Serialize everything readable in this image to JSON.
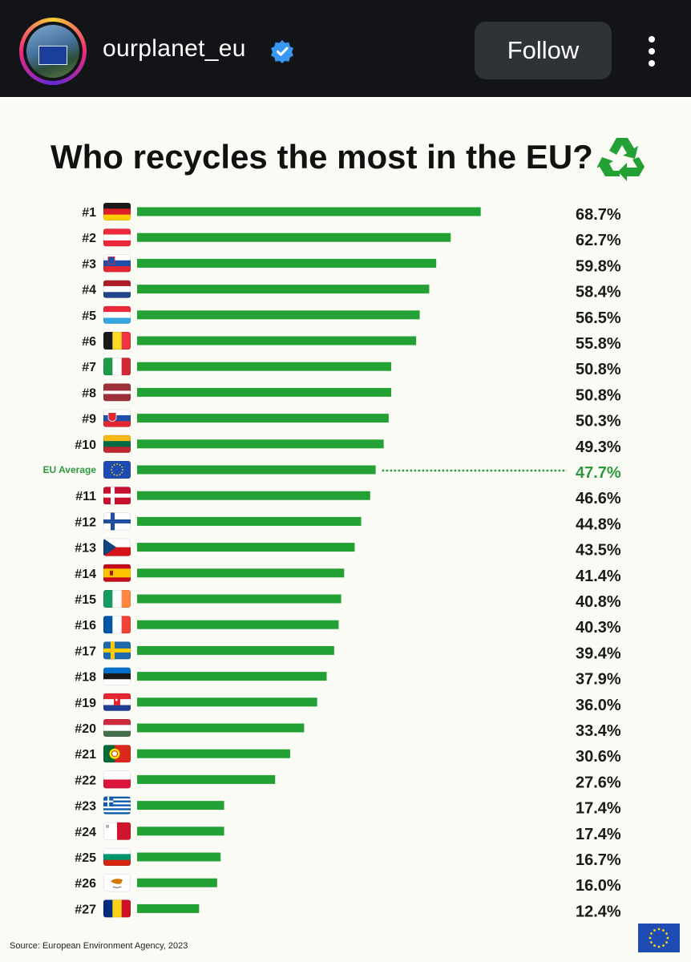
{
  "header": {
    "username": "ourplanet_eu",
    "follow_label": "Follow",
    "icons": [
      "avatar",
      "verified-badge-icon",
      "more-options-icon"
    ]
  },
  "colors": {
    "bar": "#23a134",
    "eu_average": "#2e9a40",
    "topbar": "#121418",
    "background": "#fbfbf6"
  },
  "chart_data": {
    "type": "bar",
    "orientation": "horizontal",
    "title": "Who recycles the most in the EU?",
    "source": "Source: European Environment Agency, 2023",
    "value_suffix": "%",
    "xlim": [
      0,
      80
    ],
    "rows": [
      {
        "rank": "#1",
        "flag": "de",
        "value": 68.7,
        "label": "68.7%"
      },
      {
        "rank": "#2",
        "flag": "at",
        "value": 62.7,
        "label": "62.7%"
      },
      {
        "rank": "#3",
        "flag": "si",
        "value": 59.8,
        "label": "59.8%"
      },
      {
        "rank": "#4",
        "flag": "nl",
        "value": 58.4,
        "label": "58.4%"
      },
      {
        "rank": "#5",
        "flag": "lu",
        "value": 56.5,
        "label": "56.5%"
      },
      {
        "rank": "#6",
        "flag": "be",
        "value": 55.8,
        "label": "55.8%"
      },
      {
        "rank": "#7",
        "flag": "it",
        "value": 50.8,
        "label": "50.8%"
      },
      {
        "rank": "#8",
        "flag": "lv",
        "value": 50.8,
        "label": "50.8%"
      },
      {
        "rank": "#9",
        "flag": "sk",
        "value": 50.3,
        "label": "50.3%"
      },
      {
        "rank": "#10",
        "flag": "lt",
        "value": 49.3,
        "label": "49.3%"
      },
      {
        "rank": "EU Average",
        "flag": "eu",
        "value": 47.7,
        "label": "47.7%",
        "average": true
      },
      {
        "rank": "#11",
        "flag": "dk",
        "value": 46.6,
        "label": "46.6%"
      },
      {
        "rank": "#12",
        "flag": "fi",
        "value": 44.8,
        "label": "44.8%"
      },
      {
        "rank": "#13",
        "flag": "cz",
        "value": 43.5,
        "label": "43.5%"
      },
      {
        "rank": "#14",
        "flag": "es",
        "value": 41.4,
        "label": "41.4%"
      },
      {
        "rank": "#15",
        "flag": "ie",
        "value": 40.8,
        "label": "40.8%"
      },
      {
        "rank": "#16",
        "flag": "fr",
        "value": 40.3,
        "label": "40.3%"
      },
      {
        "rank": "#17",
        "flag": "se",
        "value": 39.4,
        "label": "39.4%"
      },
      {
        "rank": "#18",
        "flag": "ee",
        "value": 37.9,
        "label": "37.9%"
      },
      {
        "rank": "#19",
        "flag": "hr",
        "value": 36.0,
        "label": "36.0%"
      },
      {
        "rank": "#20",
        "flag": "hu",
        "value": 33.4,
        "label": "33.4%"
      },
      {
        "rank": "#21",
        "flag": "pt",
        "value": 30.6,
        "label": "30.6%"
      },
      {
        "rank": "#22",
        "flag": "pl",
        "value": 27.6,
        "label": "27.6%"
      },
      {
        "rank": "#23",
        "flag": "gr",
        "value": 17.4,
        "label": "17.4%"
      },
      {
        "rank": "#24",
        "flag": "mt",
        "value": 17.4,
        "label": "17.4%"
      },
      {
        "rank": "#25",
        "flag": "bg",
        "value": 16.7,
        "label": "16.7%"
      },
      {
        "rank": "#26",
        "flag": "cy",
        "value": 16.0,
        "label": "16.0%"
      },
      {
        "rank": "#27",
        "flag": "ro",
        "value": 12.4,
        "label": "12.4%"
      }
    ]
  }
}
